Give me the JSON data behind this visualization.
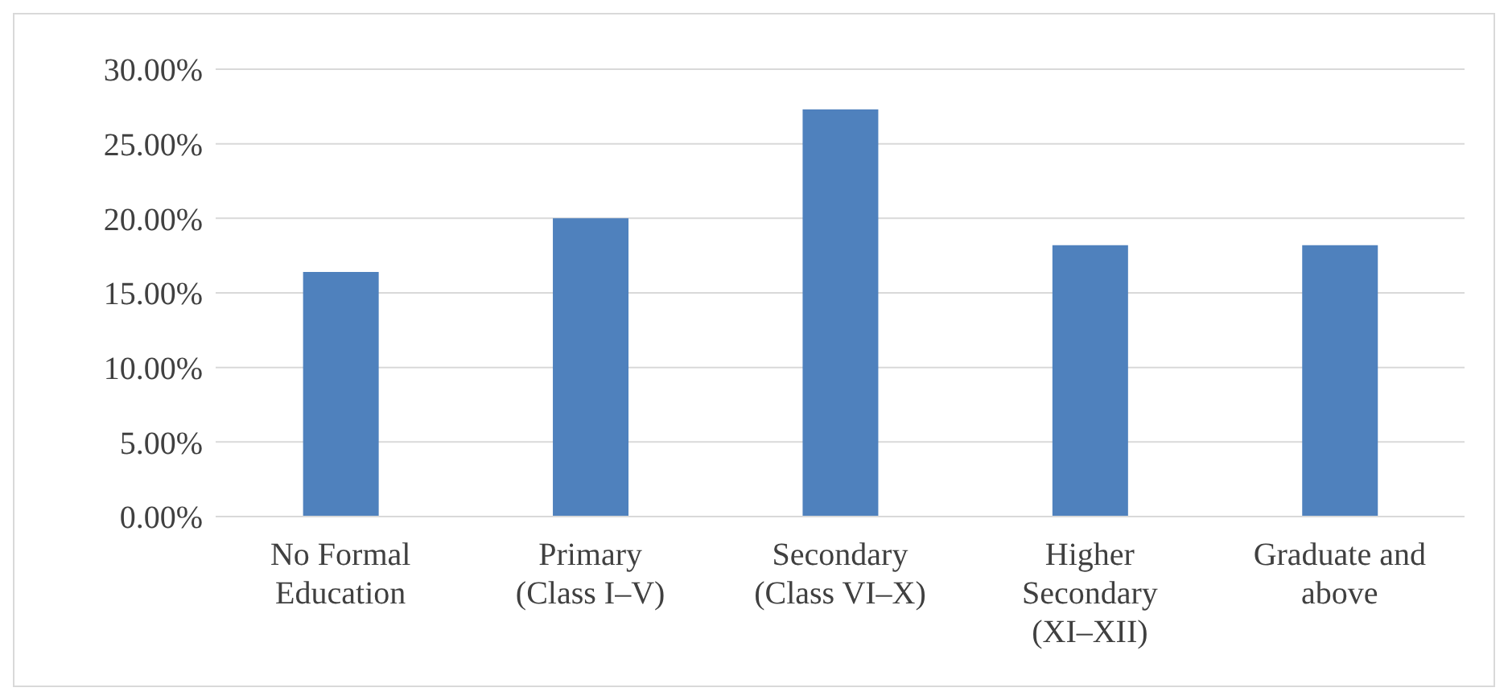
{
  "chart_data": {
    "type": "bar",
    "categories": [
      "No Formal Education",
      "Primary (Class I–V)",
      "Secondary (Class VI–X)",
      "Higher Secondary (XI–XII)",
      "Graduate and above"
    ],
    "values": [
      16.4,
      20.0,
      27.3,
      18.2,
      18.2
    ],
    "color": "#4f81bd",
    "ylim": [
      0,
      30
    ],
    "yticks": [
      {
        "value": 0,
        "label": "0.00%"
      },
      {
        "value": 5,
        "label": "5.00%"
      },
      {
        "value": 10,
        "label": "10.00%"
      },
      {
        "value": 15,
        "label": "15.00%"
      },
      {
        "value": 20,
        "label": "20.00%"
      },
      {
        "value": 25,
        "label": "25.00%"
      },
      {
        "value": 30,
        "label": "30.00%"
      }
    ],
    "grid": "y"
  }
}
